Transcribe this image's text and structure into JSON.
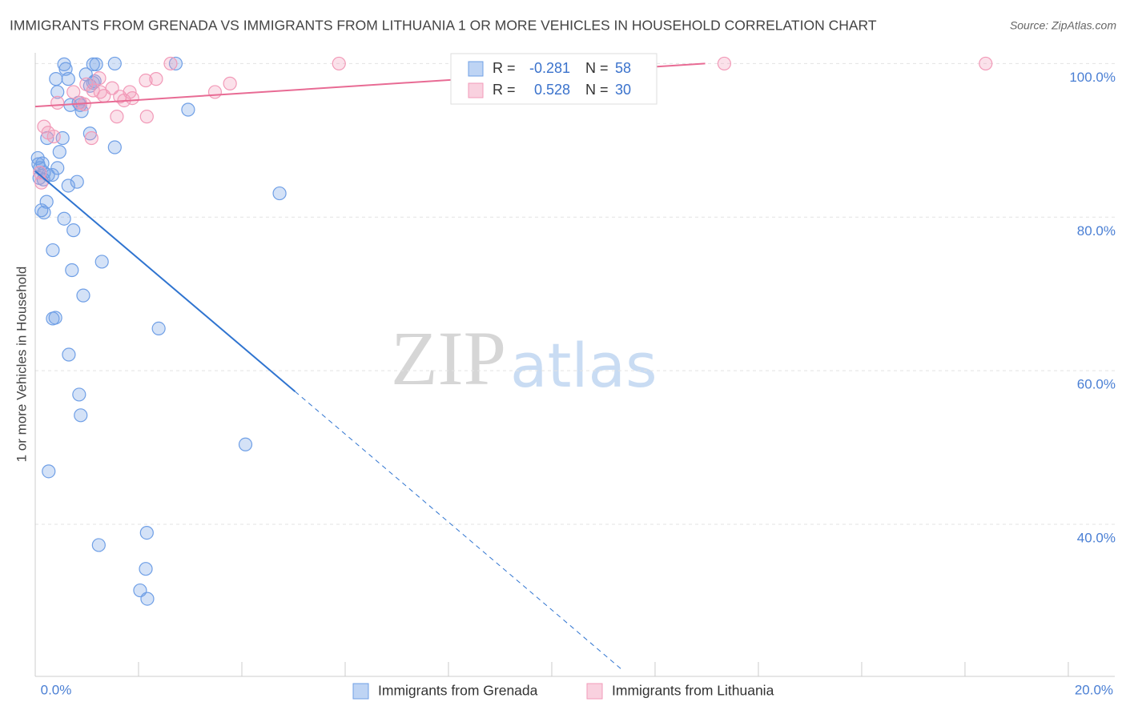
{
  "chart_data": {
    "type": "scatter",
    "title": "IMMIGRANTS FROM GRENADA VS IMMIGRANTS FROM LITHUANIA 1 OR MORE VEHICLES IN HOUSEHOLD CORRELATION CHART",
    "source": "Source: ZipAtlas.com",
    "y_label": "1 or more Vehicles in Household",
    "watermark": [
      "ZIP",
      "atlas"
    ],
    "stat_labels": [
      "R =",
      "N ="
    ],
    "xlim": [
      0,
      20.9
    ],
    "ylim": [
      20.2,
      101.4
    ],
    "xticks": [
      {
        "value": 0,
        "label": "0.0%"
      },
      2,
      4,
      6,
      8,
      10,
      12,
      14,
      16,
      18,
      {
        "value": 20,
        "label": "20.0%"
      }
    ],
    "yticks": [
      {
        "value": 40,
        "label": "40.0%"
      },
      {
        "value": 60,
        "label": "60.0%"
      },
      {
        "value": 80,
        "label": "80.0%"
      },
      {
        "value": 100,
        "label": "100.0%"
      }
    ],
    "grid": true,
    "series": [
      {
        "name": "Immigrants from Grenada",
        "color": "#6f9fe6",
        "line_color": "#2f74d0",
        "r": -0.281,
        "n": 58,
        "trend": {
          "x": [
            0,
            5.03,
            11.39
          ],
          "y": [
            86,
            57.3,
            20.9
          ]
        },
        "x": [
          0.05,
          0.09,
          0.14,
          0.08,
          0.17,
          0.25,
          0.16,
          0.33,
          0.12,
          0.17,
          0.22,
          0.43,
          0.23,
          0.47,
          0.4,
          0.43,
          0.59,
          0.64,
          0.56,
          0.68,
          0.87,
          0.9,
          0.84,
          0.98,
          1.06,
          1.12,
          1.18,
          1.12,
          1.15,
          1.54,
          1.06,
          0.53,
          0.81,
          0.64,
          0.56,
          0.74,
          0.34,
          0.71,
          1.29,
          0.93,
          0.39,
          0.34,
          2.39,
          0.65,
          0.85,
          0.88,
          0.26,
          4.07,
          1.23,
          2.16,
          2.14,
          2.03,
          2.17,
          1.54,
          2.72,
          2.96,
          4.73,
          0.06
        ],
        "values": [
          87.7,
          86.4,
          87.0,
          85.1,
          85.8,
          85.5,
          84.9,
          85.5,
          80.9,
          80.6,
          82.0,
          86.4,
          90.3,
          88.5,
          98.0,
          96.3,
          99.3,
          98.0,
          99.9,
          94.6,
          94.6,
          93.8,
          94.9,
          98.6,
          97.1,
          99.9,
          99.9,
          97.5,
          97.7,
          100,
          90.9,
          90.3,
          84.6,
          84.1,
          79.8,
          78.3,
          75.7,
          73.1,
          74.2,
          69.8,
          66.9,
          66.8,
          65.5,
          62.1,
          56.9,
          54.2,
          46.9,
          50.4,
          37.3,
          38.9,
          34.2,
          31.4,
          30.3,
          89.1,
          100,
          94.0,
          83.1,
          86.9
        ]
      },
      {
        "name": "Immigrants from Lithuania",
        "color": "#f29ab8",
        "line_color": "#e86b94",
        "r": 0.528,
        "n": 30,
        "trend": {
          "x": [
            0,
            12.97
          ],
          "y": [
            94.4,
            100
          ]
        },
        "x": [
          0.12,
          0.17,
          0.25,
          0.36,
          0.43,
          0.74,
          0.87,
          0.95,
          0.99,
          1.12,
          1.24,
          1.33,
          1.49,
          1.58,
          1.64,
          1.72,
          1.83,
          1.88,
          2.14,
          2.16,
          2.34,
          2.62,
          3.48,
          3.77,
          5.88,
          13.34,
          18.4,
          1.09,
          0.09,
          1.26
        ],
        "values": [
          84.5,
          91.8,
          91.0,
          90.5,
          94.9,
          96.3,
          94.9,
          94.7,
          97.3,
          96.5,
          98.1,
          95.8,
          96.8,
          93.1,
          95.7,
          95.2,
          96.3,
          95.5,
          97.8,
          93.1,
          98.0,
          100,
          96.3,
          97.4,
          100,
          100,
          100,
          90.3,
          85.8,
          96.3
        ]
      }
    ]
  }
}
